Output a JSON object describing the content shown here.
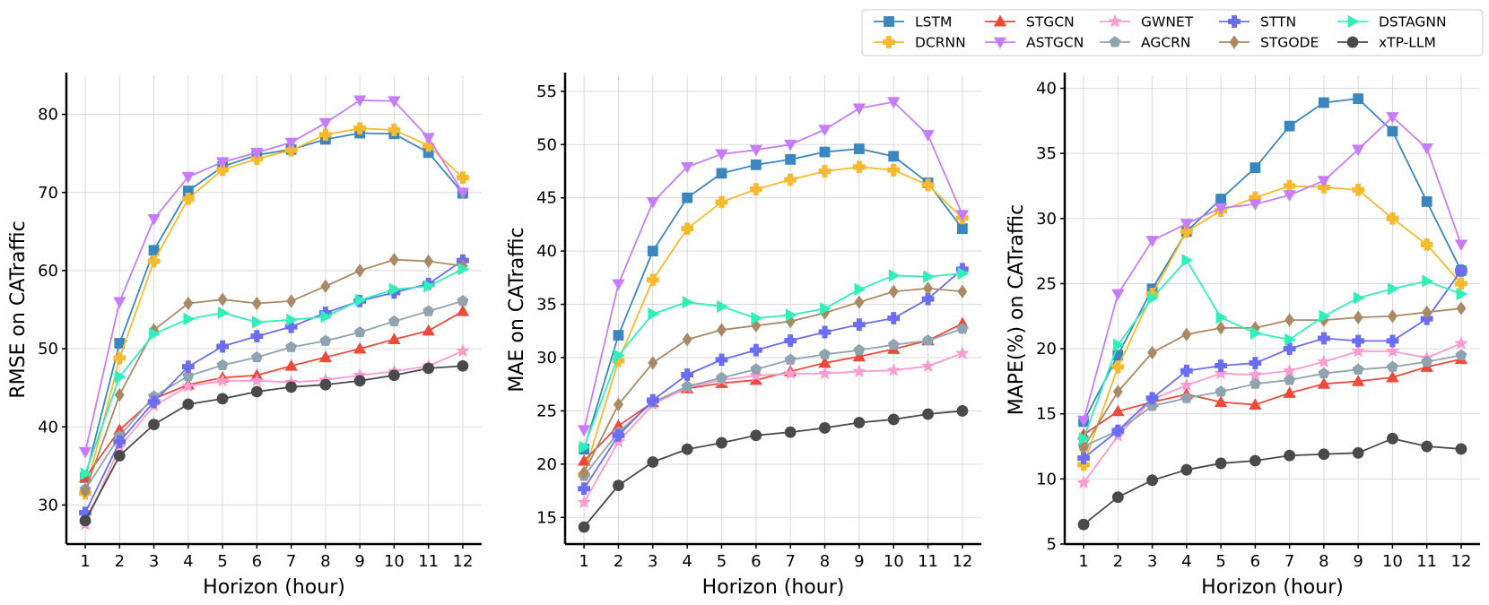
{
  "figure": {
    "series_styles": [
      {
        "name": "LSTM",
        "color": "#3a86bf",
        "marker": "square"
      },
      {
        "name": "DCRNN",
        "color": "#f7b92e",
        "marker": "plus-filled"
      },
      {
        "name": "STGCN",
        "color": "#ec4a3a",
        "marker": "triangle-up"
      },
      {
        "name": "ASTGCN",
        "color": "#c77dfb",
        "marker": "triangle-down"
      },
      {
        "name": "GWNET",
        "color": "#fb9bcf",
        "marker": "star"
      },
      {
        "name": "AGCRN",
        "color": "#8fa3b0",
        "marker": "pentagon"
      },
      {
        "name": "STTN",
        "color": "#6b6df2",
        "marker": "plus-filled"
      },
      {
        "name": "STGODE",
        "color": "#a98a64",
        "marker": "diamond"
      },
      {
        "name": "DSTAGNN",
        "color": "#2ef0b8",
        "marker": "triangle-right"
      },
      {
        "name": "xTP-LLM",
        "color": "#4a4a4a",
        "marker": "circle"
      }
    ]
  },
  "chart_data": [
    {
      "type": "line",
      "title": "",
      "xlabel": "Horizon (hour)",
      "ylabel": "RMSE on CATraffic",
      "x": [
        1,
        2,
        3,
        4,
        5,
        6,
        7,
        8,
        9,
        10,
        11,
        12
      ],
      "ylim": [
        25,
        85
      ],
      "yticks": [
        30,
        40,
        50,
        60,
        70,
        80
      ],
      "grid": true,
      "series": [
        {
          "name": "LSTM",
          "values": [
            33.5,
            50.7,
            62.6,
            70.2,
            73.3,
            74.8,
            75.5,
            76.8,
            77.6,
            77.5,
            75.1,
            69.9
          ]
        },
        {
          "name": "DCRNN",
          "values": [
            31.5,
            48.8,
            61.2,
            69.2,
            72.9,
            74.3,
            75.4,
            77.4,
            78.2,
            78.0,
            76.0,
            71.9
          ]
        },
        {
          "name": "STGCN",
          "values": [
            33.5,
            39.6,
            43.6,
            45.4,
            46.3,
            46.6,
            47.8,
            48.9,
            50.0,
            51.2,
            52.3,
            54.8
          ]
        },
        {
          "name": "ASTGCN",
          "values": [
            36.8,
            56.0,
            66.6,
            72.0,
            73.9,
            75.1,
            76.4,
            78.9,
            81.8,
            81.7,
            77.0,
            70.0
          ]
        },
        {
          "name": "GWNET",
          "values": [
            27.5,
            37.4,
            42.7,
            45.2,
            45.9,
            45.9,
            45.7,
            46.0,
            46.6,
            47.1,
            47.8,
            49.7
          ]
        },
        {
          "name": "AGCRN",
          "values": [
            32.0,
            38.8,
            43.9,
            46.5,
            47.9,
            48.9,
            50.2,
            51.0,
            52.1,
            53.5,
            54.8,
            56.1
          ]
        },
        {
          "name": "STTN",
          "values": [
            29.0,
            38.1,
            43.2,
            47.7,
            50.3,
            51.6,
            52.8,
            54.6,
            56.1,
            57.2,
            58.3,
            61.3
          ]
        },
        {
          "name": "STGODE",
          "values": [
            31.8,
            44.1,
            52.4,
            55.8,
            56.3,
            55.8,
            56.1,
            58.0,
            60.0,
            61.4,
            61.2,
            60.6
          ]
        },
        {
          "name": "DSTAGNN",
          "values": [
            34.0,
            46.4,
            51.9,
            53.8,
            54.6,
            53.4,
            53.7,
            54.1,
            56.2,
            57.6,
            58.0,
            60.2
          ]
        },
        {
          "name": "xTP-LLM",
          "values": [
            28.0,
            36.3,
            40.3,
            42.9,
            43.6,
            44.5,
            45.1,
            45.4,
            45.9,
            46.6,
            47.5,
            47.8
          ]
        }
      ]
    },
    {
      "type": "line",
      "title": "",
      "xlabel": "Horizon (hour)",
      "ylabel": "MAE on CATraffic",
      "x": [
        1,
        2,
        3,
        4,
        5,
        6,
        7,
        8,
        9,
        10,
        11,
        12
      ],
      "ylim": [
        12.5,
        56.5
      ],
      "yticks": [
        15,
        20,
        25,
        30,
        35,
        40,
        45,
        50,
        55
      ],
      "grid": true,
      "series": [
        {
          "name": "LSTM",
          "values": [
            21.4,
            32.1,
            40.0,
            45.0,
            47.3,
            48.1,
            48.6,
            49.3,
            49.6,
            48.9,
            46.4,
            42.1
          ]
        },
        {
          "name": "DCRNN",
          "values": [
            19.0,
            29.7,
            37.3,
            42.1,
            44.6,
            45.8,
            46.7,
            47.5,
            47.9,
            47.6,
            46.2,
            43.1
          ]
        },
        {
          "name": "STGCN",
          "values": [
            20.3,
            23.6,
            25.8,
            27.1,
            27.6,
            27.9,
            28.7,
            29.5,
            30.1,
            30.8,
            31.6,
            33.2
          ]
        },
        {
          "name": "ASTGCN",
          "values": [
            23.2,
            36.9,
            44.6,
            47.9,
            49.1,
            49.5,
            50.0,
            51.4,
            53.4,
            54.0,
            50.9,
            43.4
          ]
        },
        {
          "name": "GWNET",
          "values": [
            16.4,
            22.1,
            25.6,
            27.2,
            27.9,
            28.3,
            28.5,
            28.5,
            28.7,
            28.8,
            29.2,
            30.4
          ]
        },
        {
          "name": "AGCRN",
          "values": [
            18.9,
            23.0,
            25.8,
            27.3,
            28.1,
            28.9,
            29.8,
            30.3,
            30.7,
            31.2,
            31.6,
            32.7
          ]
        },
        {
          "name": "STTN",
          "values": [
            17.7,
            22.7,
            26.0,
            28.4,
            29.8,
            30.7,
            31.6,
            32.4,
            33.1,
            33.7,
            35.5,
            38.3
          ]
        },
        {
          "name": "STGODE",
          "values": [
            19.2,
            25.6,
            29.5,
            31.7,
            32.6,
            33.0,
            33.4,
            34.2,
            35.2,
            36.2,
            36.5,
            36.2
          ]
        },
        {
          "name": "DSTAGNN",
          "values": [
            21.6,
            30.2,
            34.1,
            35.2,
            34.8,
            33.7,
            34.0,
            34.6,
            36.4,
            37.7,
            37.6,
            37.9
          ]
        },
        {
          "name": "xTP-LLM",
          "values": [
            14.1,
            18.0,
            20.2,
            21.4,
            22.0,
            22.7,
            23.0,
            23.4,
            23.9,
            24.2,
            24.7,
            25.0
          ]
        }
      ]
    },
    {
      "type": "line",
      "title": "",
      "xlabel": "Horizon (hour)",
      "ylabel": "MAPE(%) on CATraffic",
      "x": [
        1,
        2,
        3,
        4,
        5,
        6,
        7,
        8,
        9,
        10,
        11,
        12
      ],
      "ylim": [
        5,
        41
      ],
      "yticks": [
        5,
        10,
        15,
        20,
        25,
        30,
        35,
        40
      ],
      "grid": true,
      "series": [
        {
          "name": "LSTM",
          "values": [
            14.4,
            19.5,
            24.6,
            29.0,
            31.5,
            33.9,
            37.1,
            38.9,
            39.2,
            36.7,
            31.3,
            26.0
          ]
        },
        {
          "name": "DCRNN",
          "values": [
            11.1,
            18.6,
            24.2,
            29.0,
            30.6,
            31.6,
            32.5,
            32.4,
            32.2,
            30.0,
            28.0,
            25.0
          ]
        },
        {
          "name": "STGCN",
          "values": [
            13.4,
            15.2,
            15.9,
            16.5,
            15.9,
            15.7,
            16.6,
            17.3,
            17.5,
            17.8,
            18.6,
            19.2
          ]
        },
        {
          "name": "ASTGCN",
          "values": [
            14.5,
            24.2,
            28.3,
            29.6,
            30.8,
            31.1,
            31.8,
            32.9,
            35.3,
            37.8,
            35.4,
            28.0
          ]
        },
        {
          "name": "GWNET",
          "values": [
            9.7,
            13.3,
            16.1,
            17.2,
            18.1,
            18.0,
            18.3,
            19.0,
            19.8,
            19.8,
            19.3,
            20.4
          ]
        },
        {
          "name": "AGCRN",
          "values": [
            12.5,
            13.7,
            15.6,
            16.2,
            16.7,
            17.3,
            17.6,
            18.1,
            18.4,
            18.6,
            19.0,
            19.5
          ]
        },
        {
          "name": "STTN",
          "values": [
            11.6,
            13.7,
            16.2,
            18.3,
            18.7,
            18.9,
            20.0,
            20.8,
            20.6,
            20.6,
            22.3,
            26.0
          ]
        },
        {
          "name": "STGODE",
          "values": [
            12.4,
            16.7,
            19.7,
            21.1,
            21.6,
            21.6,
            22.2,
            22.2,
            22.4,
            22.5,
            22.8,
            23.1
          ]
        },
        {
          "name": "DSTAGNN",
          "values": [
            13.1,
            20.3,
            23.9,
            26.8,
            22.4,
            21.2,
            20.7,
            22.5,
            23.9,
            24.6,
            25.2,
            24.2
          ]
        },
        {
          "name": "xTP-LLM",
          "values": [
            6.5,
            8.6,
            9.9,
            10.7,
            11.2,
            11.4,
            11.8,
            11.9,
            12.0,
            13.1,
            12.5,
            12.3
          ]
        }
      ]
    }
  ]
}
